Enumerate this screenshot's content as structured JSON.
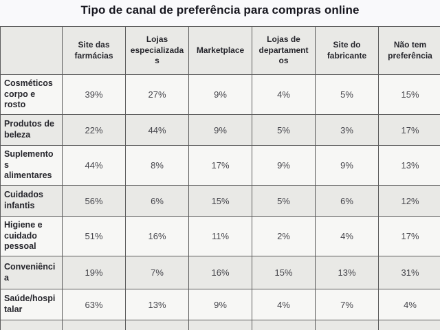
{
  "title": "Tipo de canal de preferência para compras online",
  "table": {
    "col_headers": [
      "Site das farmácias",
      "Lojas especializadas",
      "Marketplace",
      "Lojas de departamentos",
      "Site do fabricante",
      "Não tem preferência"
    ],
    "rows": [
      {
        "label": "Cosméticos corpo e rosto",
        "values": [
          "39%",
          "27%",
          "9%",
          "4%",
          "5%",
          "15%"
        ]
      },
      {
        "label": "Produtos de beleza",
        "values": [
          "22%",
          "44%",
          "9%",
          "5%",
          "3%",
          "17%"
        ]
      },
      {
        "label": "Suplementos alimentares",
        "values": [
          "44%",
          "8%",
          "17%",
          "9%",
          "9%",
          "13%"
        ]
      },
      {
        "label": "Cuidados infantis",
        "values": [
          "56%",
          "6%",
          "15%",
          "5%",
          "6%",
          "12%"
        ]
      },
      {
        "label": "Higiene e cuidado pessoal",
        "values": [
          "51%",
          "16%",
          "11%",
          "2%",
          "4%",
          "17%"
        ]
      },
      {
        "label": "Conveniência",
        "values": [
          "19%",
          "7%",
          "16%",
          "15%",
          "13%",
          "31%"
        ]
      },
      {
        "label": "Saúde/hospitalar",
        "values": [
          "63%",
          "13%",
          "9%",
          "4%",
          "7%",
          "4%"
        ]
      },
      {
        "label": "",
        "values": [
          "",
          "",
          "",
          "",
          "",
          ""
        ]
      }
    ]
  },
  "chart_data": {
    "type": "table",
    "title": "Tipo de canal de preferência para compras online",
    "columns": [
      "Site das farmácias",
      "Lojas especializadas",
      "Marketplace",
      "Lojas de departamentos",
      "Site do fabricante",
      "Não tem preferência"
    ],
    "rows": [
      {
        "label": "Cosméticos corpo e rosto",
        "values_pct": [
          39,
          27,
          9,
          4,
          5,
          15
        ]
      },
      {
        "label": "Produtos de beleza",
        "values_pct": [
          22,
          44,
          9,
          5,
          3,
          17
        ]
      },
      {
        "label": "Suplementos alimentares",
        "values_pct": [
          44,
          8,
          17,
          9,
          9,
          13
        ]
      },
      {
        "label": "Cuidados infantis",
        "values_pct": [
          56,
          6,
          15,
          5,
          6,
          12
        ]
      },
      {
        "label": "Higiene e cuidado pessoal",
        "values_pct": [
          51,
          16,
          11,
          2,
          4,
          17
        ]
      },
      {
        "label": "Conveniência",
        "values_pct": [
          19,
          7,
          16,
          15,
          13,
          31
        ]
      },
      {
        "label": "Saúde/hospitalar",
        "values_pct": [
          63,
          13,
          9,
          4,
          7,
          4
        ]
      }
    ],
    "layout": {
      "striped": true,
      "last_row_cut_off": true
    }
  },
  "colors": {
    "page_background": "#f9f9fb",
    "header_background": "#e9e9e6",
    "row_light": "#f7f7f5",
    "row_gray": "#e9e9e6",
    "border": "#5b5b5b",
    "title_text": "#16161e",
    "label_text": "#26262c",
    "value_text": "#45454b"
  }
}
